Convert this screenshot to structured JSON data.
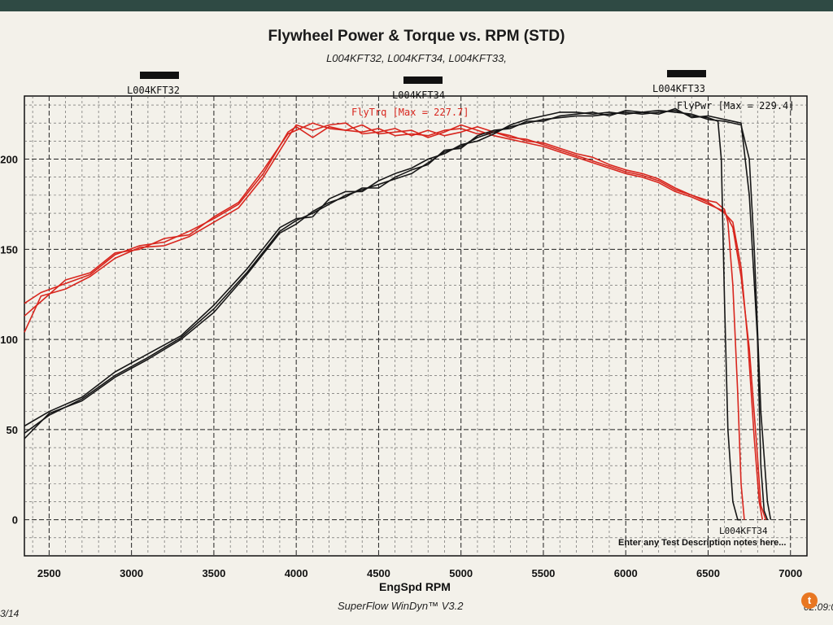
{
  "chart_data": {
    "type": "line",
    "title": "Flywheel Power & Torque vs. RPM (STD)",
    "subtitle": "L004KFT32, L004KFT34, L004KFT33,",
    "xlabel": "EngSpd RPM",
    "xlim": [
      2350,
      7100
    ],
    "ylim": [
      -20,
      235
    ],
    "x_ticks": [
      2500,
      3000,
      3500,
      4000,
      4500,
      5000,
      5500,
      6000,
      6500,
      7000
    ],
    "y_ticks": [
      0,
      50,
      100,
      150,
      200
    ],
    "y_tick_labels": [
      "0",
      "50",
      "100",
      "150",
      "200"
    ],
    "grid": true,
    "run_labels": [
      "L004KFT32",
      "L004KFT34",
      "L004KFT33"
    ],
    "torque_label": "FlyTrq [Max = 227.7]",
    "power_label": "FlyPwr [Max = 229.4]",
    "bottom_run_label": "L004KFT34",
    "notes": "Enter any Test Description notes here...",
    "footer": "SuperFlow WinDyn™ V3.2",
    "corner_left": "3/14",
    "corner_right": "02:09:0",
    "badge": "t",
    "colors": {
      "torque": "#d8261e",
      "power": "#161616"
    },
    "series": [
      {
        "name": "FlyTrq",
        "color": "#d8261e",
        "runs": [
          {
            "x": [
              2350,
              2450,
              2600,
              2750,
              2900,
              3050,
              3200,
              3350,
              3500,
              3650,
              3800,
              3950,
              4000,
              4100,
              4200,
              4300,
              4400,
              4500,
              4600,
              4700,
              4800,
              4900,
              5000,
              5100,
              5200,
              5300,
              5400,
              5500,
              5600,
              5700,
              5800,
              5900,
              6000,
              6100,
              6200,
              6300,
              6400,
              6500,
              6550,
              6600,
              6620,
              6650,
              6680,
              6700,
              6720
            ],
            "y": [
              120,
              126,
              131,
              136,
              147,
              152,
              154,
              160,
              167,
              175,
              192,
              215,
              218,
              212,
              218,
              216,
              215,
              217,
              213,
              214,
              213,
              216,
              217,
              214,
              215,
              213,
              210,
              209,
              206,
              203,
              201,
              197,
              194,
              192,
              189,
              184,
              180,
              177,
              176,
              172,
              165,
              130,
              70,
              20,
              0
            ]
          },
          {
            "x": [
              2350,
              2450,
              2600,
              2750,
              2900,
              3050,
              3200,
              3350,
              3500,
              3650,
              3800,
              3950,
              4000,
              4100,
              4200,
              4300,
              4400,
              4500,
              4600,
              4700,
              4800,
              4900,
              5000,
              5100,
              5200,
              5300,
              5400,
              5500,
              5600,
              5700,
              5800,
              5900,
              6000,
              6100,
              6200,
              6300,
              6400,
              6500,
              6600,
              6650,
              6700,
              6740,
              6780,
              6810,
              6830
            ],
            "y": [
              104,
              124,
              128,
              135,
              145,
              151,
              152,
              157,
              165,
              173,
              190,
              212,
              219,
              216,
              219,
              220,
              214,
              215,
              217,
              213,
              216,
              213,
              215,
              218,
              215,
              212,
              211,
              208,
              205,
              202,
              199,
              196,
              193,
              191,
              188,
              183,
              180,
              176,
              170,
              165,
              140,
              100,
              45,
              10,
              0
            ]
          },
          {
            "x": [
              2350,
              2450,
              2600,
              2750,
              2900,
              3050,
              3200,
              3350,
              3500,
              3650,
              3800,
              3950,
              4000,
              4100,
              4200,
              4300,
              4400,
              4500,
              4600,
              4700,
              4800,
              4900,
              5000,
              5100,
              5200,
              5300,
              5400,
              5500,
              5600,
              5700,
              5800,
              5900,
              6000,
              6100,
              6200,
              6300,
              6400,
              6500,
              6600,
              6650,
              6700,
              6750,
              6800,
              6820,
              6850
            ],
            "y": [
              113,
              121,
              133,
              137,
              148,
              150,
              156,
              158,
              168,
              176,
              194,
              214,
              216,
              220,
              217,
              216,
              219,
              214,
              215,
              216,
              212,
              215,
              219,
              216,
              213,
              211,
              209,
              207,
              204,
              201,
              198,
              195,
              192,
              190,
              187,
              182,
              179,
              175,
              171,
              162,
              135,
              95,
              35,
              8,
              0
            ]
          }
        ]
      },
      {
        "name": "FlyPwr",
        "color": "#161616",
        "runs": [
          {
            "x": [
              2350,
              2500,
              2700,
              2900,
              3100,
              3300,
              3500,
              3700,
              3900,
              4000,
              4100,
              4200,
              4300,
              4400,
              4500,
              4600,
              4700,
              4800,
              4900,
              5000,
              5100,
              5200,
              5300,
              5400,
              5500,
              5600,
              5700,
              5800,
              5900,
              6000,
              6100,
              6200,
              6300,
              6400,
              6500,
              6560,
              6580,
              6600,
              6620,
              6650,
              6680,
              6700
            ],
            "y": [
              48,
              58,
              67,
              80,
              90,
              101,
              117,
              137,
              160,
              166,
              170,
              175,
              180,
              183,
              186,
              189,
              192,
              198,
              204,
              207,
              212,
              215,
              218,
              220,
              222,
              223,
              224,
              224,
              225,
              226,
              225,
              226,
              227,
              224,
              223,
              221,
              200,
              120,
              50,
              10,
              0,
              0
            ]
          },
          {
            "x": [
              2350,
              2500,
              2700,
              2900,
              3100,
              3300,
              3500,
              3700,
              3900,
              4000,
              4100,
              4200,
              4300,
              4400,
              4500,
              4600,
              4700,
              4800,
              4900,
              5000,
              5100,
              5200,
              5300,
              5400,
              5500,
              5600,
              5700,
              5800,
              5900,
              6000,
              6100,
              6200,
              6300,
              6400,
              6500,
              6600,
              6700,
              6750,
              6800,
              6820,
              6840,
              6860
            ],
            "y": [
              52,
              60,
              68,
              82,
              92,
              102,
              119,
              139,
              162,
              167,
              168,
              178,
              182,
              182,
              188,
              192,
              195,
              200,
              203,
              208,
              210,
              214,
              219,
              222,
              224,
              226,
              226,
              225,
              226,
              225,
              226,
              225,
              228,
              223,
              224,
              222,
              220,
              180,
              100,
              30,
              5,
              0
            ]
          },
          {
            "x": [
              2350,
              2500,
              2700,
              2900,
              3100,
              3300,
              3500,
              3700,
              3900,
              4000,
              4100,
              4200,
              4300,
              4400,
              4500,
              4600,
              4700,
              4800,
              4900,
              5000,
              5100,
              5200,
              5300,
              5400,
              5500,
              5600,
              5700,
              5800,
              5900,
              6000,
              6100,
              6200,
              6300,
              6400,
              6500,
              6600,
              6700,
              6750,
              6780,
              6820,
              6860,
              6880
            ],
            "y": [
              45,
              59,
              66,
              79,
              89,
              100,
              115,
              136,
              159,
              164,
              171,
              176,
              179,
              184,
              184,
              190,
              194,
              197,
              205,
              206,
              213,
              216,
              217,
              221,
              221,
              224,
              225,
              226,
              224,
              227,
              226,
              227,
              226,
              225,
              222,
              221,
              219,
              200,
              150,
              60,
              10,
              0
            ]
          }
        ]
      }
    ]
  }
}
